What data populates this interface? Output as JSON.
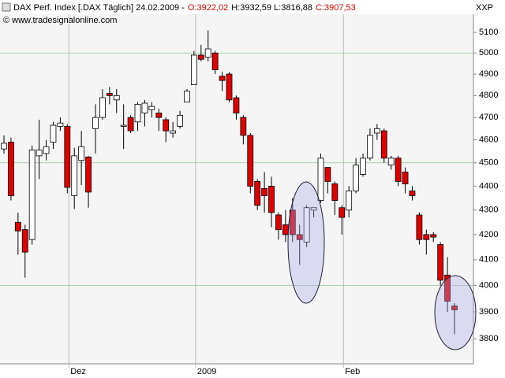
{
  "chart_data": {
    "type": "candlestick",
    "title": "DAX Perf. Index [.DAX Täglich] 24.02.2009 -",
    "quote": [
      {
        "text": "O:3922,02",
        "color": "#e00000"
      },
      {
        "text": "H:3932,59 L:3816,88",
        "color": "#000000"
      },
      {
        "text": "C:3907,53",
        "color": "#e00000"
      }
    ],
    "source": "© www.tradesignalonline.com",
    "axis_label": "XXP",
    "categories": [
      null,
      null,
      null,
      null,
      null,
      null,
      null,
      null,
      null,
      "Dez",
      null,
      null,
      null,
      null,
      null,
      null,
      null,
      null,
      null,
      null,
      null,
      null,
      null,
      null,
      null,
      null,
      null,
      "2009",
      null,
      null,
      null,
      null,
      null,
      null,
      null,
      null,
      null,
      null,
      null,
      null,
      null,
      null,
      null,
      null,
      null,
      null,
      null,
      null,
      "Feb",
      null,
      null,
      null,
      null,
      null,
      null,
      null,
      null,
      null,
      null,
      null,
      null,
      null,
      null,
      null,
      null
    ],
    "series": [
      {
        "open": [
          4560,
          4590,
          4250,
          4220,
          4180,
          4530,
          4540,
          4590,
          4660,
          4660,
          4360,
          4510,
          4525,
          4650,
          4700,
          4810,
          4780,
          4660,
          4700,
          4680,
          4720,
          4735,
          4720,
          4690,
          4630,
          4660,
          4770,
          4850,
          4990,
          4980,
          5000,
          4890,
          4900,
          4790,
          4700,
          4620,
          4420,
          4390,
          4400,
          4280,
          4240,
          4300,
          4200,
          4170,
          4300,
          4340,
          4480,
          4410,
          4310,
          4300,
          4380,
          4450,
          4520,
          4630,
          4640,
          4490,
          4520,
          4460,
          4380,
          4280,
          4200,
          4200,
          4160,
          4040,
          3922.02
        ],
        "high": [
          4620,
          4610,
          4290,
          4240,
          4575,
          4690,
          4600,
          4680,
          4700,
          4670,
          4565,
          4640,
          4530,
          4760,
          4830,
          4840,
          4830,
          4760,
          4710,
          4770,
          4780,
          4770,
          4740,
          4700,
          4680,
          4730,
          4830,
          5010,
          5040,
          5110,
          5010,
          4910,
          4910,
          4800,
          4710,
          4630,
          4430,
          4460,
          4440,
          4290,
          4300,
          4350,
          4240,
          4320,
          4310,
          4540,
          4480,
          4420,
          4320,
          4400,
          4520,
          4540,
          4650,
          4670,
          4650,
          4530,
          4530,
          4480,
          4400,
          4290,
          4220,
          4210,
          4170,
          4110,
          3932.59
        ],
        "low": [
          4540,
          4340,
          4120,
          4030,
          4160,
          4430,
          4510,
          4560,
          4640,
          4370,
          4305,
          4405,
          4310,
          4540,
          4690,
          4760,
          4720,
          4560,
          4630,
          4640,
          4660,
          4700,
          4640,
          4590,
          4610,
          4650,
          4770,
          4850,
          4960,
          4960,
          4900,
          4820,
          4770,
          4690,
          4580,
          4370,
          4300,
          4290,
          4230,
          4180,
          4170,
          4170,
          4080,
          4150,
          4270,
          4330,
          4370,
          4280,
          4200,
          4270,
          4370,
          4440,
          4510,
          4600,
          4500,
          4470,
          4400,
          4370,
          4340,
          4160,
          4120,
          4170,
          4000,
          3900,
          3816.88
        ],
        "close": [
          4585,
          4360,
          4215,
          4130,
          4555,
          4555,
          4570,
          4665,
          4675,
          4395,
          4530,
          4570,
          4375,
          4700,
          4790,
          4800,
          4800,
          4665,
          4640,
          4760,
          4765,
          4750,
          4700,
          4640,
          4640,
          4710,
          4820,
          4990,
          4970,
          5020,
          4920,
          4870,
          4780,
          4720,
          4620,
          4400,
          4320,
          4360,
          4290,
          4220,
          4200,
          4200,
          4180,
          4310,
          4310,
          4520,
          4420,
          4340,
          4270,
          4380,
          4490,
          4520,
          4620,
          4650,
          4520,
          4520,
          4420,
          4410,
          4360,
          4180,
          4180,
          4190,
          4020,
          3940,
          3907.53
        ]
      }
    ],
    "up_color": "#ffffff",
    "down_color": "#e00000",
    "log": true,
    "ylim": [
      3710,
      5190
    ],
    "yticks": [
      3800,
      3900,
      4000,
      4100,
      4200,
      4300,
      4400,
      4500,
      4600,
      4700,
      4800,
      4900,
      5000,
      5100
    ],
    "grid_lines": [
      4000,
      4500,
      5000
    ],
    "grid_color": "#a9d3a9"
  }
}
